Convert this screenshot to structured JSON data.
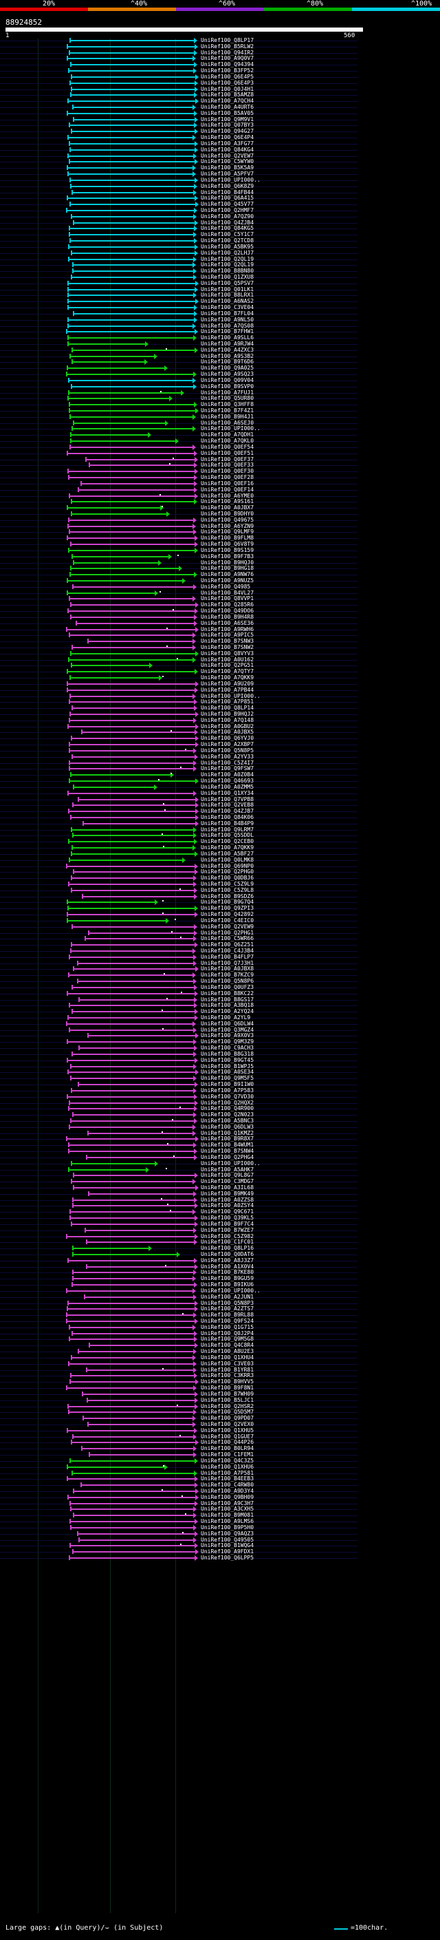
{
  "scale": {
    "labels": [
      "20%",
      "^40%",
      "^60%",
      "^80%",
      "^100%"
    ],
    "colors": [
      "#dd0000",
      "#dd7700",
      "#8822cc",
      "#00aa00",
      "#00ccdd"
    ]
  },
  "query": {
    "id": "88924852",
    "start": "1",
    "end": "560"
  },
  "colors": {
    "cyan": "#00ccdd",
    "green": "#11cc11",
    "magenta": "#cc44cc"
  },
  "hits": [
    {
      "label": "UniRef100_Q8LP17",
      "color": "cyan"
    },
    {
      "label": "UniRef100_B5RLW2",
      "color": "cyan"
    },
    {
      "label": "UniRef100_Q94IR2",
      "color": "cyan"
    },
    {
      "label": "UniRef100_A9Q0V7",
      "color": "cyan"
    },
    {
      "label": "UniRef100_Q94394",
      "color": "cyan"
    },
    {
      "label": "UniRef100_B3FP52",
      "color": "cyan"
    },
    {
      "label": "UniRef100_Q6E4P5",
      "color": "cyan"
    },
    {
      "label": "UniRef100_Q6E4P3",
      "color": "cyan"
    },
    {
      "label": "UniRef100_Q0J4H1",
      "color": "cyan"
    },
    {
      "label": "UniRef100_B5AMZ8",
      "color": "cyan"
    },
    {
      "label": "UniRef100_A7QCH4",
      "color": "cyan"
    },
    {
      "label": "UniRef100_A4URT6",
      "color": "cyan"
    },
    {
      "label": "UniRef100_B5AV05",
      "color": "cyan"
    },
    {
      "label": "UniRef100_Q9M9V1",
      "color": "cyan"
    },
    {
      "label": "UniRef100_Q07BY3",
      "color": "cyan"
    },
    {
      "label": "UniRef100_Q94G27",
      "color": "cyan"
    },
    {
      "label": "UniRef100_Q6E4P4",
      "color": "cyan"
    },
    {
      "label": "UniRef100_A3FG77",
      "color": "cyan"
    },
    {
      "label": "UniRef100_Q84KG4",
      "color": "cyan"
    },
    {
      "label": "UniRef100_Q2VEW7",
      "color": "cyan"
    },
    {
      "label": "UniRef100_C5WYW0",
      "color": "cyan"
    },
    {
      "label": "UniRef100_B5K5A9",
      "color": "cyan"
    },
    {
      "label": "UniRef100_A5PFV7",
      "color": "cyan"
    },
    {
      "label": "UniRef100_UPI000..",
      "color": "cyan"
    },
    {
      "label": "UniRef100_Q6K8Z9",
      "color": "cyan"
    },
    {
      "label": "UniRef100_B4FB44",
      "color": "cyan"
    },
    {
      "label": "UniRef100_Q6A415",
      "color": "cyan"
    },
    {
      "label": "UniRef100_Q45V77",
      "color": "cyan"
    },
    {
      "label": "UniRef100_Q2HMF7",
      "color": "cyan"
    },
    {
      "label": "UniRef100_A7QZ90",
      "color": "cyan"
    },
    {
      "label": "UniRef100_Q4ZJB4",
      "color": "cyan"
    },
    {
      "label": "UniRef100_Q84KG5",
      "color": "cyan"
    },
    {
      "label": "UniRef100_C5Y1C7",
      "color": "cyan"
    },
    {
      "label": "UniRef100_Q2TCD8",
      "color": "cyan"
    },
    {
      "label": "UniRef100_A5BK95",
      "color": "cyan"
    },
    {
      "label": "UniRef100_Q2LHJ7",
      "color": "cyan"
    },
    {
      "label": "UniRef100_Q2QL19",
      "color": "cyan"
    },
    {
      "label": "UniRef100_Q2QL19",
      "color": "cyan"
    },
    {
      "label": "UniRef100_B8BN80",
      "color": "cyan"
    },
    {
      "label": "UniRef100_Q1ZXU8",
      "color": "cyan"
    },
    {
      "label": "UniRef100_Q5PSV7",
      "color": "cyan"
    },
    {
      "label": "UniRef100_Q01LK1",
      "color": "cyan"
    },
    {
      "label": "UniRef100_B8LRX1",
      "color": "cyan"
    },
    {
      "label": "UniRef100_A6NAS2",
      "color": "cyan"
    },
    {
      "label": "UniRef100_C3VE04",
      "color": "cyan"
    },
    {
      "label": "UniRef100_B7FL04",
      "color": "cyan"
    },
    {
      "label": "UniRef100_A9NL50",
      "color": "cyan"
    },
    {
      "label": "UniRef100_A7QS08",
      "color": "cyan"
    },
    {
      "label": "UniRef100_B7FHW1",
      "color": "cyan"
    },
    {
      "label": "UniRef100_A9SLL6",
      "color": "green"
    },
    {
      "label": "UniRef100_A9RJW4",
      "color": "green"
    },
    {
      "label": "UniRef100_A4ZXC3",
      "color": "green"
    },
    {
      "label": "UniRef100_A9S3B2",
      "color": "green"
    },
    {
      "label": "UniRef100_B9T6D6",
      "color": "green"
    },
    {
      "label": "UniRef100_Q9A025",
      "color": "green"
    },
    {
      "label": "UniRef100_A9SQ23",
      "color": "green"
    },
    {
      "label": "UniRef100_Q09V04",
      "color": "cyan"
    },
    {
      "label": "UniRef100_B9SVP0",
      "color": "cyan"
    },
    {
      "label": "UniRef100_A7FUJ1",
      "color": "green"
    },
    {
      "label": "UniRef100_Q5UR80",
      "color": "green"
    },
    {
      "label": "UniRef100_Q3HFF8",
      "color": "green"
    },
    {
      "label": "UniRef100_B7F4Z1",
      "color": "green"
    },
    {
      "label": "UniRef100_B9H4J1",
      "color": "green"
    },
    {
      "label": "UniRef100_A6SEJ0",
      "color": "green"
    },
    {
      "label": "UniRef100_UPI000..",
      "color": "green"
    },
    {
      "label": "UniRef100_A7QDH1",
      "color": "green"
    },
    {
      "label": "UniRef100_A7QKL0",
      "color": "green"
    },
    {
      "label": "UniRef100_Q0EF54",
      "color": "magenta"
    },
    {
      "label": "UniRef100_Q0EF51",
      "color": "magenta"
    },
    {
      "label": "UniRef100_Q0EF37",
      "color": "magenta"
    },
    {
      "label": "UniRef100_Q0EF33",
      "color": "magenta"
    },
    {
      "label": "UniRef100_Q0EF30",
      "color": "magenta"
    },
    {
      "label": "UniRef100_Q0EF28",
      "color": "magenta"
    },
    {
      "label": "UniRef100_Q0EF16",
      "color": "magenta"
    },
    {
      "label": "UniRef100_Q0EF14",
      "color": "magenta"
    },
    {
      "label": "UniRef100_A6YME0",
      "color": "magenta"
    },
    {
      "label": "UniRef100_A9S161",
      "color": "green"
    },
    {
      "label": "UniRef100_A0JBX7",
      "color": "green"
    },
    {
      "label": "UniRef100_B9DHY0",
      "color": "green"
    },
    {
      "label": "UniRef100_Q49675",
      "color": "magenta"
    },
    {
      "label": "UniRef100_A6YZN9",
      "color": "magenta"
    },
    {
      "label": "UniRef100_Q9LMF9",
      "color": "magenta"
    },
    {
      "label": "UniRef100_B9FLM8",
      "color": "magenta"
    },
    {
      "label": "UniRef100_Q6V8T9",
      "color": "magenta"
    },
    {
      "label": "UniRef100_B9S159",
      "color": "green"
    },
    {
      "label": "UniRef100_B9F7B3",
      "color": "green"
    },
    {
      "label": "UniRef100_B9HQJ0",
      "color": "green"
    },
    {
      "label": "UniRef100_B9HG18",
      "color": "green"
    },
    {
      "label": "UniRef100_A9NW76",
      "color": "green"
    },
    {
      "label": "UniRef100_A9NUZ5",
      "color": "green"
    },
    {
      "label": "UniRef100_Q4985",
      "color": "magenta"
    },
    {
      "label": "UniRef100_B4VL27",
      "color": "green"
    },
    {
      "label": "UniRef100_Q8VVP1",
      "color": "magenta"
    },
    {
      "label": "UniRef100_Q285R6",
      "color": "magenta"
    },
    {
      "label": "UniRef100_Q49DO6",
      "color": "magenta"
    },
    {
      "label": "UniRef100_B9H4R8",
      "color": "magenta"
    },
    {
      "label": "UniRef100_A6SE36",
      "color": "magenta"
    },
    {
      "label": "UniRef100_A9RWH6",
      "color": "magenta"
    },
    {
      "label": "UniRef100_A9PIC5",
      "color": "magenta"
    },
    {
      "label": "UniRef100_B7SNW3",
      "color": "magenta"
    },
    {
      "label": "UniRef100_B7SNW2",
      "color": "magenta"
    },
    {
      "label": "UniRef100_Q8VYV3",
      "color": "green"
    },
    {
      "label": "UniRef100_A0U162",
      "color": "green"
    },
    {
      "label": "UniRef100_Q2PG51",
      "color": "green"
    },
    {
      "label": "UniRef100_A7QTY7",
      "color": "green"
    },
    {
      "label": "UniRef100_A7QKK9",
      "color": "green"
    },
    {
      "label": "UniRef100_A9U209",
      "color": "magenta"
    },
    {
      "label": "UniRef100_A7PB44",
      "color": "magenta"
    },
    {
      "label": "UniRef100_UPI000..",
      "color": "magenta"
    },
    {
      "label": "UniRef100_A7P851",
      "color": "magenta"
    },
    {
      "label": "UniRef100_Q8LP14",
      "color": "magenta"
    },
    {
      "label": "UniRef100_B9HQJ2",
      "color": "magenta"
    },
    {
      "label": "UniRef100_A7Q148",
      "color": "magenta"
    },
    {
      "label": "UniRef100_A0GBU2",
      "color": "magenta"
    },
    {
      "label": "UniRef100_A0JBX5",
      "color": "magenta"
    },
    {
      "label": "UniRef100_Q6YVJ0",
      "color": "magenta"
    },
    {
      "label": "UniRef100_A2XBP7",
      "color": "magenta"
    },
    {
      "label": "UniRef100_Q5N8P5",
      "color": "magenta"
    },
    {
      "label": "UniRef100_A2YV33",
      "color": "magenta"
    },
    {
      "label": "UniRef100_C5Z4I7",
      "color": "magenta"
    },
    {
      "label": "UniRef100_Q9FSW7",
      "color": "magenta"
    },
    {
      "label": "UniRef100_A0Z0B4",
      "color": "green"
    },
    {
      "label": "UniRef100_Q46693",
      "color": "green"
    },
    {
      "label": "UniRef100_A0ZMM5",
      "color": "green"
    },
    {
      "label": "UniRef100_Q1XY34",
      "color": "magenta"
    },
    {
      "label": "UniRef100_Q7VPB8",
      "color": "magenta"
    },
    {
      "label": "UniRef100_Q2VEB8",
      "color": "magenta"
    },
    {
      "label": "UniRef100_Q4ZJB7",
      "color": "magenta"
    },
    {
      "label": "UniRef100_Q84K06",
      "color": "magenta"
    },
    {
      "label": "UniRef100_B4B4P9",
      "color": "magenta"
    },
    {
      "label": "UniRef100_Q9LRM7",
      "color": "green"
    },
    {
      "label": "UniRef100_Q5SDDL",
      "color": "green"
    },
    {
      "label": "UniRef100_Q2CEB0",
      "color": "green"
    },
    {
      "label": "UniRef100_A7QKK9",
      "color": "green"
    },
    {
      "label": "UniRef100_A5BF27",
      "color": "green"
    },
    {
      "label": "UniRef100_Q0LMK8",
      "color": "green"
    },
    {
      "label": "UniRef100_Q69NP0",
      "color": "magenta"
    },
    {
      "label": "UniRef100_Q2PHG0",
      "color": "magenta"
    },
    {
      "label": "UniRef100_Q0DBJ6",
      "color": "magenta"
    },
    {
      "label": "UniRef100_C5Z9L9",
      "color": "magenta"
    },
    {
      "label": "UniRef100_C5Z9L8",
      "color": "magenta"
    },
    {
      "label": "UniRef100_B9SDZ6",
      "color": "magenta"
    },
    {
      "label": "UniRef100_B9G7Q4",
      "color": "green"
    },
    {
      "label": "UniRef100_Q9ZPI3",
      "color": "green"
    },
    {
      "label": "UniRef100_Q42892",
      "color": "magenta"
    },
    {
      "label": "UniRef100_C4EIC0",
      "color": "green"
    },
    {
      "label": "UniRef100_Q2VEW9",
      "color": "magenta"
    },
    {
      "label": "UniRef100_Q2PHG1",
      "color": "magenta"
    },
    {
      "label": "UniRef100_C5WR66",
      "color": "magenta"
    },
    {
      "label": "UniRef100_Q6Z251",
      "color": "magenta"
    },
    {
      "label": "UniRef100_C4J3B4",
      "color": "magenta"
    },
    {
      "label": "UniRef100_B4FLP7",
      "color": "magenta"
    },
    {
      "label": "UniRef100_Q7J3H1",
      "color": "magenta"
    },
    {
      "label": "UniRef100_A0JBX8",
      "color": "magenta"
    },
    {
      "label": "UniRef100_B7KZC9",
      "color": "magenta"
    },
    {
      "label": "UniRef100_Q5N8P6",
      "color": "magenta"
    },
    {
      "label": "UniRef100_Q0UFZ3",
      "color": "magenta"
    },
    {
      "label": "UniRef100_B8KC22",
      "color": "magenta"
    },
    {
      "label": "UniRef100_B8GS17",
      "color": "magenta"
    },
    {
      "label": "UniRef100_A3BQ18",
      "color": "magenta"
    },
    {
      "label": "UniRef100_A2YQ24",
      "color": "magenta"
    },
    {
      "label": "UniRef100_A2YL9",
      "color": "magenta"
    },
    {
      "label": "UniRef100_Q6DLW4",
      "color": "magenta"
    },
    {
      "label": "UniRef100_Q3MGZ4",
      "color": "magenta"
    },
    {
      "label": "UniRef100_A9X0V3",
      "color": "magenta"
    },
    {
      "label": "UniRef100_Q9M3Z9",
      "color": "magenta"
    },
    {
      "label": "UniRef100_C9ACH3",
      "color": "magenta"
    },
    {
      "label": "UniRef100_B8G318",
      "color": "magenta"
    },
    {
      "label": "UniRef100_B9GT45",
      "color": "magenta"
    },
    {
      "label": "UniRef100_B1WPJ5",
      "color": "magenta"
    },
    {
      "label": "UniRef100_A0SE34",
      "color": "magenta"
    },
    {
      "label": "UniRef100_Q9M5F5",
      "color": "magenta"
    },
    {
      "label": "UniRef100_B9I1W0",
      "color": "magenta"
    },
    {
      "label": "UniRef100_A7P583",
      "color": "magenta"
    },
    {
      "label": "UniRef100_Q7VD30",
      "color": "magenta"
    },
    {
      "label": "UniRef100_Q2HQX2",
      "color": "magenta"
    },
    {
      "label": "UniRef100_Q4R900",
      "color": "magenta"
    },
    {
      "label": "UniRef100_Q2N023",
      "color": "magenta"
    },
    {
      "label": "UniRef100_A5BNC3",
      "color": "magenta"
    },
    {
      "label": "UniRef100_Q6DLW3",
      "color": "magenta"
    },
    {
      "label": "UniRef100_Q1KMZ2",
      "color": "magenta"
    },
    {
      "label": "UniRef100_B9R8X7",
      "color": "magenta"
    },
    {
      "label": "UniRef100_B4WUM1",
      "color": "magenta"
    },
    {
      "label": "UniRef100_B7SNW4",
      "color": "magenta"
    },
    {
      "label": "UniRef100_Q2PHG4",
      "color": "magenta"
    },
    {
      "label": "UniRef100_UPI000..",
      "color": "green"
    },
    {
      "label": "UniRef100_A5AHK7",
      "color": "green"
    },
    {
      "label": "UniRef100_Q9L8G7",
      "color": "magenta"
    },
    {
      "label": "UniRef100_C3MDG7",
      "color": "magenta"
    },
    {
      "label": "UniRef100_A3IL68",
      "color": "magenta"
    },
    {
      "label": "UniRef100_B9MK49",
      "color": "magenta"
    },
    {
      "label": "UniRef100_A0ZZS8",
      "color": "magenta"
    },
    {
      "label": "UniRef100_A0ZSY4",
      "color": "magenta"
    },
    {
      "label": "UniRef100_Q9C671",
      "color": "magenta"
    },
    {
      "label": "UniRef100_Q39KL5",
      "color": "magenta"
    },
    {
      "label": "UniRef100_B9F7C4",
      "color": "magenta"
    },
    {
      "label": "UniRef100_B7WZE7",
      "color": "magenta"
    },
    {
      "label": "UniRef100_C5Z982",
      "color": "magenta"
    },
    {
      "label": "UniRef100_C1FC01",
      "color": "magenta"
    },
    {
      "label": "UniRef100_Q8LP16",
      "color": "green"
    },
    {
      "label": "UniRef100_Q0DAT6",
      "color": "green"
    },
    {
      "label": "UniRef100_A8J3Z7",
      "color": "magenta"
    },
    {
      "label": "UniRef100_A1X0V4",
      "color": "magenta"
    },
    {
      "label": "UniRef100_B7KE80",
      "color": "magenta"
    },
    {
      "label": "UniRef100_B9GU59",
      "color": "magenta"
    },
    {
      "label": "UniRef100_B9IKU6",
      "color": "magenta"
    },
    {
      "label": "UniRef100_UPI000..",
      "color": "magenta"
    },
    {
      "label": "UniRef100_A2JUN1",
      "color": "magenta"
    },
    {
      "label": "UniRef100_Q5N8P3",
      "color": "magenta"
    },
    {
      "label": "UniRef100_A2ZTS7",
      "color": "magenta"
    },
    {
      "label": "UniRef100_B9RL88",
      "color": "magenta"
    },
    {
      "label": "UniRef100_Q9FS24",
      "color": "magenta"
    },
    {
      "label": "UniRef100_Q1G715",
      "color": "magenta"
    },
    {
      "label": "UniRef100_Q0J2P4",
      "color": "magenta"
    },
    {
      "label": "UniRef100_Q9M5G8",
      "color": "magenta"
    },
    {
      "label": "UniRef100_Q4C8R4",
      "color": "magenta"
    },
    {
      "label": "UniRef100_A8U2E3",
      "color": "magenta"
    },
    {
      "label": "UniRef100_Q1XHU4",
      "color": "magenta"
    },
    {
      "label": "UniRef100_C3VE03",
      "color": "magenta"
    },
    {
      "label": "UniRef100_B1YR81",
      "color": "magenta"
    },
    {
      "label": "UniRef100_C3KRR3",
      "color": "magenta"
    },
    {
      "label": "UniRef100_B9HVV5",
      "color": "magenta"
    },
    {
      "label": "UniRef100_B9F8N1",
      "color": "magenta"
    },
    {
      "label": "UniRef100_B7WH09",
      "color": "magenta"
    },
    {
      "label": "UniRef100_B5LJC1",
      "color": "magenta"
    },
    {
      "label": "UniRef100_Q2HSR2",
      "color": "magenta"
    },
    {
      "label": "UniRef100_Q5D5M7",
      "color": "magenta"
    },
    {
      "label": "UniRef100_Q9PD07",
      "color": "magenta"
    },
    {
      "label": "UniRef100_Q2VEX0",
      "color": "magenta"
    },
    {
      "label": "UniRef100_Q1XHU5",
      "color": "magenta"
    },
    {
      "label": "UniRef100_Q1GUE7",
      "color": "magenta"
    },
    {
      "label": "UniRef100_Q44P26",
      "color": "magenta"
    },
    {
      "label": "UniRef100_B0LR94",
      "color": "magenta"
    },
    {
      "label": "UniRef100_C1FEM1",
      "color": "magenta"
    },
    {
      "label": "UniRef100_Q4C3Z5",
      "color": "green"
    },
    {
      "label": "UniRef100_Q1XHU6",
      "color": "green"
    },
    {
      "label": "UniRef100_A7P581",
      "color": "green"
    },
    {
      "label": "UniRef100_B4EEB3",
      "color": "magenta"
    },
    {
      "label": "UniRef100_C4RW80",
      "color": "magenta"
    },
    {
      "label": "UniRef100_A9D3Y4",
      "color": "magenta"
    },
    {
      "label": "UniRef100_Q9BH09",
      "color": "magenta"
    },
    {
      "label": "UniRef100_A9C3H7",
      "color": "magenta"
    },
    {
      "label": "UniRef100_A3CXH5",
      "color": "magenta"
    },
    {
      "label": "UniRef100_B9M081",
      "color": "magenta"
    },
    {
      "label": "UniRef100_A9LMS6",
      "color": "magenta"
    },
    {
      "label": "UniRef100_B9P5H0",
      "color": "magenta"
    },
    {
      "label": "UniRef100_Q9AQZ3",
      "color": "magenta"
    },
    {
      "label": "UniRef100_Q49505",
      "color": "magenta"
    },
    {
      "label": "UniRef100_B1WQG4",
      "color": "magenta"
    },
    {
      "label": "UniRef100_A9FDX1",
      "color": "magenta"
    },
    {
      "label": "UniRef100_Q6LPP5",
      "color": "magenta"
    }
  ],
  "footer": {
    "text": "Large gaps: ▲(in Query)/⌣ (in Subject)",
    "legend": "=100char."
  }
}
